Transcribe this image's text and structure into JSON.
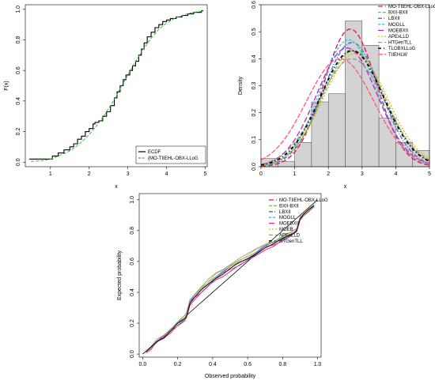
{
  "chart_data": [
    {
      "id": "ecdf",
      "type": "line",
      "xlabel": "x",
      "ylabel": "F(x)",
      "xlim": [
        0.35,
        5.05
      ],
      "ylim": [
        -0.03,
        1.03
      ],
      "xticks": [
        1,
        2,
        3,
        4,
        5
      ],
      "yticks": [
        0.0,
        0.2,
        0.4,
        0.6,
        0.8,
        1.0
      ],
      "xtick_labels": [
        "1",
        "2",
        "3",
        "4",
        "5"
      ],
      "ytick_labels": [
        "0.0",
        "0.2",
        "0.4",
        "0.6",
        "0.8",
        "1.0"
      ],
      "legend": {
        "position": "bottom-right",
        "entries": [
          "ECDF",
          "(MO-TIIEHL-OBX-LLoG"
        ]
      },
      "series": [
        {
          "name": "ECDF",
          "color": "#000000",
          "style": "step",
          "x": [
            0.45,
            1.05,
            1.2,
            1.35,
            1.5,
            1.6,
            1.7,
            1.8,
            1.9,
            2.0,
            2.1,
            2.15,
            2.25,
            2.35,
            2.45,
            2.55,
            2.65,
            2.72,
            2.8,
            2.88,
            2.95,
            3.05,
            3.12,
            3.2,
            3.28,
            3.35,
            3.42,
            3.5,
            3.6,
            3.7,
            3.8,
            3.9,
            4.0,
            4.1,
            4.25,
            4.4,
            4.55,
            4.7,
            4.9
          ],
          "y": [
            0.02,
            0.04,
            0.06,
            0.08,
            0.1,
            0.12,
            0.15,
            0.17,
            0.2,
            0.22,
            0.25,
            0.26,
            0.27,
            0.3,
            0.33,
            0.37,
            0.42,
            0.46,
            0.5,
            0.54,
            0.57,
            0.6,
            0.63,
            0.66,
            0.7,
            0.74,
            0.78,
            0.82,
            0.85,
            0.88,
            0.9,
            0.92,
            0.93,
            0.94,
            0.95,
            0.96,
            0.97,
            0.98,
            0.99
          ]
        },
        {
          "name": "(MO-TIIEHL-OBX-LLoG",
          "color": "#33bb33",
          "style": "dashed",
          "x": [
            0.5,
            0.8,
            1.0,
            1.2,
            1.4,
            1.6,
            1.8,
            2.0,
            2.2,
            2.4,
            2.6,
            2.8,
            3.0,
            3.2,
            3.4,
            3.6,
            3.8,
            4.0,
            4.2,
            4.4,
            4.6,
            4.8,
            4.95
          ],
          "y": [
            0.005,
            0.01,
            0.02,
            0.04,
            0.06,
            0.09,
            0.13,
            0.18,
            0.24,
            0.31,
            0.39,
            0.48,
            0.57,
            0.66,
            0.74,
            0.81,
            0.87,
            0.91,
            0.94,
            0.96,
            0.975,
            0.985,
            0.99
          ]
        }
      ]
    },
    {
      "id": "density",
      "type": "bar",
      "xlabel": "x",
      "ylabel": "Density",
      "xlim": [
        0,
        5.0
      ],
      "ylim": [
        0,
        0.6
      ],
      "xticks": [
        0,
        1,
        2,
        3,
        4,
        5
      ],
      "yticks": [
        0.0,
        0.1,
        0.2,
        0.3,
        0.4,
        0.5,
        0.6
      ],
      "xtick_labels": [
        "0",
        "1",
        "2",
        "3",
        "4",
        "5"
      ],
      "ytick_labels": [
        "0.0",
        "0.1",
        "0.2",
        "0.3",
        "0.4",
        "0.5",
        "0.6"
      ],
      "histogram": {
        "bin_edges": [
          0,
          0.5,
          1.0,
          1.5,
          2.0,
          2.5,
          3.0,
          3.5,
          4.0,
          4.5,
          5.0
        ],
        "values": [
          0.03,
          0.02,
          0.09,
          0.24,
          0.27,
          0.54,
          0.45,
          0.18,
          0.09,
          0.06
        ],
        "fill": "#d3d3d3"
      },
      "legend": {
        "position": "top-right"
      },
      "series": [
        {
          "name": "MO-TIIEHL-OBX-LLoG",
          "color": "#e8174f",
          "peak": 2.65,
          "height": 0.51,
          "sd": 0.78
        },
        {
          "name": "BXII-BXII",
          "color": "#6cc24a",
          "peak": 2.75,
          "height": 0.43,
          "sd": 0.92
        },
        {
          "name": "LBXII",
          "color": "#3a6fd8",
          "peak": 2.7,
          "height": 0.46,
          "sd": 0.86
        },
        {
          "name": "MOGLL",
          "color": "#30c8d8",
          "peak": 2.6,
          "height": 0.47,
          "sd": 0.84
        },
        {
          "name": "MOEBXII",
          "color": "#c030c0",
          "peak": 2.55,
          "height": 0.44,
          "sd": 0.9
        },
        {
          "name": "APExLLD",
          "color": "#f2b21b",
          "peak": 2.8,
          "height": 0.42,
          "sd": 0.95
        },
        {
          "name": "HTGenTLL",
          "color": "#999999",
          "peak": 2.7,
          "height": 0.4,
          "sd": 0.98
        },
        {
          "name": "TLOBXLLoG",
          "color": "#000000",
          "peak": 2.7,
          "height": 0.43,
          "sd": 0.93
        },
        {
          "name": "TIIEHLW",
          "color": "#ff5a8a",
          "peak": 2.35,
          "height": 0.4,
          "sd": 1.0
        }
      ]
    },
    {
      "id": "pp",
      "type": "line",
      "xlabel": "Observed probability",
      "ylabel": "Expected probability",
      "xlim": [
        -0.02,
        1.02
      ],
      "ylim": [
        -0.02,
        1.04
      ],
      "xticks": [
        0.0,
        0.2,
        0.4,
        0.6,
        0.8,
        1.0
      ],
      "yticks": [
        0.0,
        0.2,
        0.4,
        0.6,
        0.8,
        1.0
      ],
      "xtick_labels": [
        "0.0",
        "0.2",
        "0.4",
        "0.6",
        "0.8",
        "1.0"
      ],
      "ytick_labels": [
        "0.0",
        "0.2",
        "0.4",
        "0.6",
        "0.8",
        "1.0"
      ],
      "legend": {
        "position": "top-right"
      },
      "reference_line": {
        "from": [
          0,
          0
        ],
        "to": [
          1,
          1
        ],
        "color": "#000000"
      },
      "base_curve": {
        "x": [
          0.02,
          0.05,
          0.08,
          0.12,
          0.16,
          0.2,
          0.24,
          0.25,
          0.27,
          0.3,
          0.34,
          0.38,
          0.42,
          0.46,
          0.5,
          0.55,
          0.6,
          0.65,
          0.7,
          0.75,
          0.8,
          0.85,
          0.88,
          0.9,
          0.92,
          0.95,
          0.98
        ],
        "y": [
          0.01,
          0.04,
          0.08,
          0.11,
          0.15,
          0.19,
          0.22,
          0.24,
          0.33,
          0.37,
          0.41,
          0.45,
          0.49,
          0.52,
          0.55,
          0.58,
          0.61,
          0.65,
          0.69,
          0.71,
          0.74,
          0.77,
          0.8,
          0.88,
          0.9,
          0.93,
          0.96
        ]
      },
      "series": [
        {
          "name": "MO-TIIEHL-OBX-LLoG",
          "color": "#e8174f",
          "offset": -0.01
        },
        {
          "name": "BXII-BXII",
          "color": "#6cc24a",
          "offset": 0.02
        },
        {
          "name": "LBXII",
          "color": "#3a6fd8",
          "offset": 0.01
        },
        {
          "name": "MOGLL",
          "color": "#30c8d8",
          "offset": 0.015
        },
        {
          "name": "MOEBXII",
          "color": "#c030c0",
          "offset": 0.0
        },
        {
          "name": "MOEB",
          "color": "#f2b21b",
          "offset": 0.025
        },
        {
          "name": "APExLLD",
          "color": "#999999",
          "offset": 0.035
        },
        {
          "name": "HTGenTLL",
          "color": "#000000",
          "offset": 0.005
        }
      ]
    }
  ]
}
